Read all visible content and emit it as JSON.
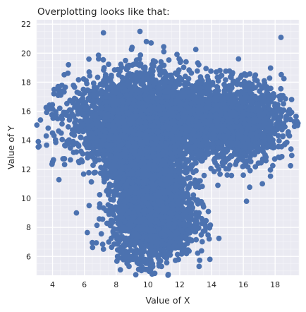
{
  "chart_data": {
    "type": "scatter",
    "title": "Overplotting looks like that:",
    "xlabel": "Value of X",
    "ylabel": "Value of Y",
    "xlim": [
      3.0,
      19.5
    ],
    "ylim": [
      4.7,
      22.3
    ],
    "xticks": [
      4,
      6,
      8,
      10,
      12,
      14,
      16,
      18
    ],
    "yticks": [
      6,
      8,
      10,
      12,
      14,
      16,
      18,
      20,
      22
    ],
    "xtick_labels": [
      "4",
      "6",
      "8",
      "10",
      "12",
      "14",
      "16",
      "18"
    ],
    "ytick_labels": [
      "6",
      "8",
      "10",
      "12",
      "14",
      "16",
      "18",
      "20",
      "22"
    ],
    "grid": true,
    "style": "seaborn-darkgrid",
    "marker_color": "#4c72b0",
    "plot_background": "#eaeaf2",
    "series": [
      {
        "clusters": [
          {
            "center": [
              10,
              12
            ],
            "spread": [
              1.15,
              2.9
            ],
            "n": 2600
          },
          {
            "center": [
              10,
              15.3
            ],
            "spread": [
              2.5,
              1.5
            ],
            "n": 2800
          },
          {
            "center": [
              15.5,
              15.3
            ],
            "spread": [
              1.5,
              1.35
            ],
            "n": 1300
          },
          {
            "center": [
              10.5,
              8.5
            ],
            "spread": [
              1.2,
              1.25
            ],
            "n": 1200
          }
        ],
        "points": [
          [
            7.2,
            21.4
          ],
          [
            9.9,
            20.8
          ],
          [
            10.2,
            20.7
          ],
          [
            9.0,
            20.4
          ],
          [
            11.0,
            20.1
          ],
          [
            3.6,
            16.25
          ],
          [
            3.8,
            16.15
          ],
          [
            4.1,
            17.5
          ],
          [
            4.4,
            17.35
          ],
          [
            4.0,
            14.5
          ],
          [
            4.2,
            13.85
          ],
          [
            4.0,
            12.5
          ],
          [
            5.0,
            19.2
          ],
          [
            6.3,
            18.7
          ],
          [
            6.9,
            19.6
          ],
          [
            5.5,
            9.0
          ],
          [
            6.3,
            9.5
          ],
          [
            6.5,
            6.95
          ],
          [
            7.2,
            6.5
          ],
          [
            8.2,
            5.9
          ],
          [
            10.3,
            5.3
          ],
          [
            11.4,
            6.1
          ],
          [
            12.3,
            6.5
          ],
          [
            15.7,
            19.6
          ],
          [
            16.2,
            18.5
          ],
          [
            17.9,
            17.2
          ],
          [
            18.2,
            16.2
          ],
          [
            18.4,
            15.9
          ],
          [
            18.9,
            16.1
          ],
          [
            18.7,
            15.4
          ],
          [
            18.9,
            14.3
          ],
          [
            18.6,
            13.7
          ],
          [
            19.0,
            13.4
          ],
          [
            18.3,
            12.8
          ],
          [
            17.2,
            11.0
          ],
          [
            16.2,
            9.8
          ],
          [
            16.0,
            11.6
          ],
          [
            14.4,
            10.9
          ],
          [
            16.9,
            13.4
          ],
          [
            13.0,
            8.3
          ],
          [
            12.6,
            7.2
          ],
          [
            14.3,
            18.7
          ],
          [
            12.4,
            19.4
          ],
          [
            13.2,
            19.2
          ],
          [
            15.0,
            12.7
          ]
        ]
      }
    ]
  }
}
